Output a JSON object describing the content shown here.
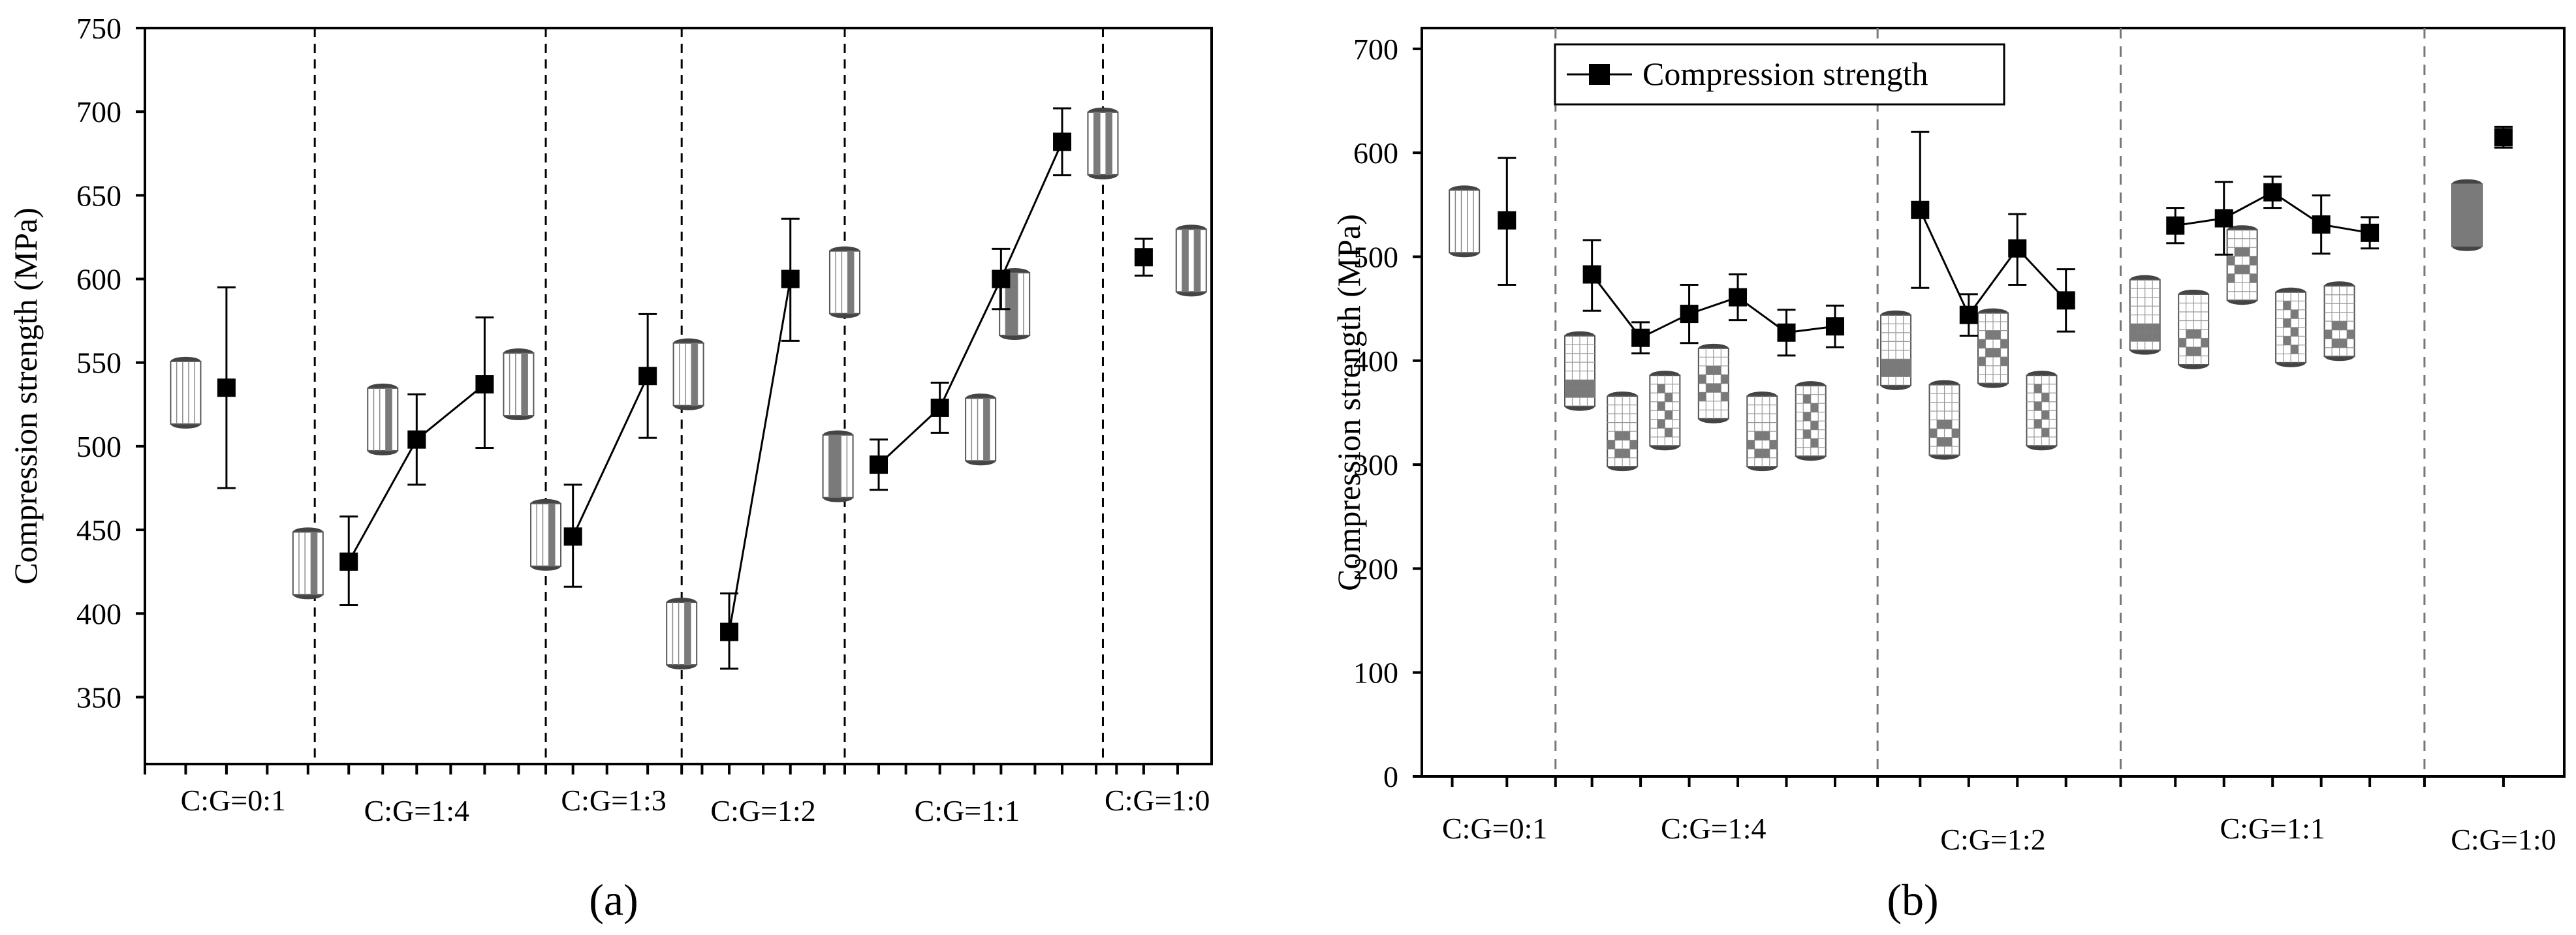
{
  "colors": {
    "marker": "#000000",
    "axis": "#000000",
    "specimen_fill": "#7a7a7a",
    "specimen_outline": "#555555",
    "divider": "#000000",
    "divider_b": "#777777"
  },
  "chart_data": [
    {
      "type": "line",
      "panel_label": "(a)",
      "ylabel": "Compression strength (MPa)",
      "ylim": [
        310,
        750
      ],
      "yticks": [
        350,
        400,
        450,
        500,
        550,
        600,
        650,
        700,
        750
      ],
      "group_labels": [
        "C:G=0:1",
        "C:G=1:4",
        "C:G=1:3",
        "C:G=1:2",
        "C:G=1:1",
        "C:G=1:0"
      ],
      "series": [
        {
          "name": "C:G=0:1",
          "x": [
            0.6
          ],
          "values": [
            535
          ],
          "err_low": [
            60
          ],
          "err_high": [
            60
          ],
          "connect": false
        },
        {
          "name": "C:G=1:4",
          "x": [
            1.5,
            2.0,
            2.5
          ],
          "values": [
            431,
            504,
            537
          ],
          "err_low": [
            26,
            27,
            38
          ],
          "err_high": [
            27,
            27,
            40
          ],
          "connect": true
        },
        {
          "name": "C:G=1:3",
          "x": [
            3.15,
            3.7
          ],
          "values": [
            446,
            542
          ],
          "err_low": [
            30,
            37
          ],
          "err_high": [
            31,
            37
          ],
          "connect": true
        },
        {
          "name": "C:G=1:2",
          "x": [
            4.3,
            4.75
          ],
          "values": [
            389,
            600
          ],
          "err_low": [
            22,
            37
          ],
          "err_high": [
            23,
            36
          ],
          "connect": true
        },
        {
          "name": "C:G=1:1",
          "x": [
            5.4,
            5.85,
            6.3,
            6.75
          ],
          "values": [
            489,
            523,
            600,
            682
          ],
          "err_low": [
            15,
            15,
            18,
            20
          ],
          "err_high": [
            15,
            15,
            18,
            20
          ],
          "connect": true
        },
        {
          "name": "C:G=1:0",
          "x": [
            7.35
          ],
          "values": [
            613
          ],
          "err_low": [
            11
          ],
          "err_high": [
            11
          ],
          "connect": false
        }
      ]
    },
    {
      "type": "line",
      "panel_label": "(b)",
      "ylabel": "Compression strength (MPa)",
      "ylim": [
        0,
        720
      ],
      "yticks": [
        0,
        100,
        200,
        300,
        400,
        500,
        600,
        700
      ],
      "legend": {
        "label": "Compression strength",
        "position": "top-left"
      },
      "group_labels": [
        "C:G=0:1",
        "C:G=1:4",
        "C:G=1:2",
        "C:G=1:1",
        "C:G=1:0"
      ],
      "series": [
        {
          "name": "C:G=0:1",
          "x": [
            0.7
          ],
          "values": [
            535
          ],
          "err_low": [
            62
          ],
          "err_high": [
            60
          ],
          "connect": false
        },
        {
          "name": "C:G=1:4",
          "x": [
            1.4,
            1.8,
            2.2,
            2.6,
            3.0,
            3.4
          ],
          "values": [
            483,
            422,
            445,
            461,
            427,
            433
          ],
          "err_low": [
            35,
            15,
            28,
            22,
            22,
            20
          ],
          "err_high": [
            33,
            15,
            28,
            22,
            22,
            20
          ],
          "connect": true
        },
        {
          "name": "C:G=1:2",
          "x": [
            4.1,
            4.5,
            4.9,
            5.3
          ],
          "values": [
            545,
            444,
            508,
            458
          ],
          "err_low": [
            75,
            20,
            35,
            30
          ],
          "err_high": [
            75,
            20,
            33,
            30
          ],
          "connect": true
        },
        {
          "name": "C:G=1:1",
          "x": [
            6.2,
            6.6,
            7.0,
            7.4,
            7.8
          ],
          "values": [
            530,
            537,
            562,
            531,
            523
          ],
          "err_low": [
            17,
            35,
            15,
            28,
            15
          ],
          "err_high": [
            17,
            35,
            15,
            28,
            15
          ],
          "connect": true
        },
        {
          "name": "C:G=1:0",
          "x": [
            8.9
          ],
          "values": [
            615
          ],
          "err_low": [
            10
          ],
          "err_high": [
            10
          ],
          "connect": false
        }
      ]
    }
  ]
}
